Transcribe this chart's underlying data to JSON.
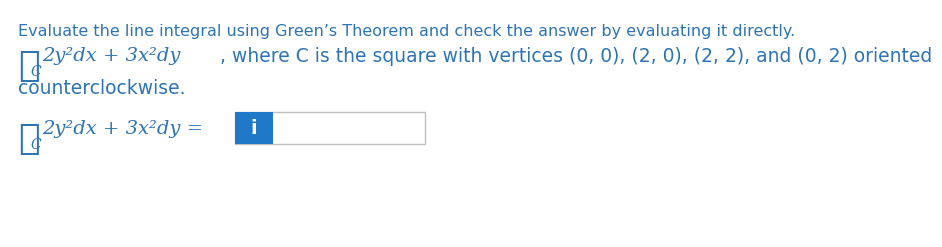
{
  "bg_color": "#ffffff",
  "text_color": "#2e74b5",
  "line1": "Evaluate the line integral using Green’s Theorem and check the answer by evaluating it directly.",
  "line1_fontsize": 11.5,
  "math_color": "#2e74b5",
  "integral_symbol": "∮",
  "integrand": " 2y²dx + 3x²dy",
  "where_text": ", where C is the square with vertices (0, 0), (2, 0), (2, 2), and (0, 2) oriented",
  "line3": "counterclockwise.",
  "integrand2": " 2y²dx + 3x²dy =",
  "subscript_C": "C",
  "answer_label": "i",
  "answer_box_bg": "#2078c8",
  "answer_box_text_color": "#ffffff",
  "answer_border_color": "#c0c0c0",
  "math_fontsize": 14,
  "integral_fontsize": 26,
  "sub_fontsize": 10,
  "answer_fontsize": 13
}
